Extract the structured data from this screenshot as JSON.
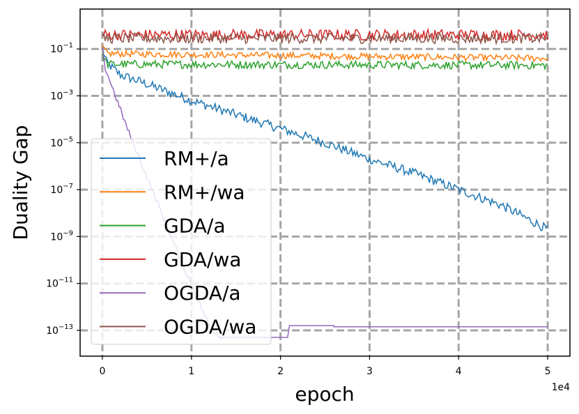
{
  "chart_data": {
    "type": "line",
    "title": "",
    "xlabel": "epoch",
    "ylabel": "Duality Gap",
    "x_offset_text": "1e4",
    "yscale": "log",
    "xlim": [
      -2500,
      52500
    ],
    "ylim_log10": [
      -14.1,
      0.7
    ],
    "grid": true,
    "legend_position": "center-left",
    "x_ticks": [
      {
        "value": 0,
        "label": "0"
      },
      {
        "value": 10000,
        "label": "1"
      },
      {
        "value": 20000,
        "label": "2"
      },
      {
        "value": 30000,
        "label": "3"
      },
      {
        "value": 40000,
        "label": "4"
      },
      {
        "value": 50000,
        "label": "5"
      }
    ],
    "y_ticks": [
      {
        "exp": -1,
        "base": "10",
        "sup": "−1"
      },
      {
        "exp": -3,
        "base": "10",
        "sup": "−3"
      },
      {
        "exp": -5,
        "base": "10",
        "sup": "−5"
      },
      {
        "exp": -7,
        "base": "10",
        "sup": "−7"
      },
      {
        "exp": -9,
        "base": "10",
        "sup": "−9"
      },
      {
        "exp": -11,
        "base": "10",
        "sup": "−11"
      },
      {
        "exp": -13,
        "base": "10",
        "sup": "−13"
      }
    ],
    "series": [
      {
        "name": "RM+/a",
        "color": "#1f77b4",
        "x": [
          0,
          500,
          2000,
          5000,
          10000,
          15000,
          20000,
          25000,
          30000,
          35000,
          40000,
          45000,
          50000
        ],
        "log10_y": [
          -1.0,
          -1.6,
          -2.1,
          -2.5,
          -3.2,
          -3.8,
          -4.4,
          -5.0,
          -5.7,
          -6.3,
          -7.0,
          -7.7,
          -8.7
        ],
        "noise": 0.2
      },
      {
        "name": "RM+/wa",
        "color": "#ff7f0e",
        "x": [
          0,
          500,
          50000
        ],
        "log10_y": [
          -0.9,
          -1.2,
          -1.4
        ],
        "noise": 0.14
      },
      {
        "name": "GDA/a",
        "color": "#2ca02c",
        "x": [
          0,
          500,
          50000
        ],
        "log10_y": [
          -1.2,
          -1.65,
          -1.7
        ],
        "noise": 0.17
      },
      {
        "name": "GDA/wa",
        "color": "#d62728",
        "x": [
          0,
          50000
        ],
        "log10_y": [
          -0.4,
          -0.4
        ],
        "noise": 0.24
      },
      {
        "name": "OGDA/a",
        "color": "#9467bd",
        "x": [
          0,
          300,
          3000,
          6000,
          9000,
          12000,
          13300,
          20800,
          20800,
          21000,
          26000,
          26000,
          50000
        ],
        "log10_y": [
          -1.0,
          -1.8,
          -4.6,
          -7.4,
          -10.2,
          -12.8,
          -13.3,
          -13.3,
          -13.3,
          -12.8,
          -12.8,
          -12.85,
          -12.85
        ],
        "noise": 0.12
      },
      {
        "name": "OGDA/wa",
        "color": "#8c564b",
        "x": [
          0,
          50000
        ],
        "log10_y": [
          -0.55,
          -0.55
        ],
        "noise": 0.22
      }
    ]
  }
}
